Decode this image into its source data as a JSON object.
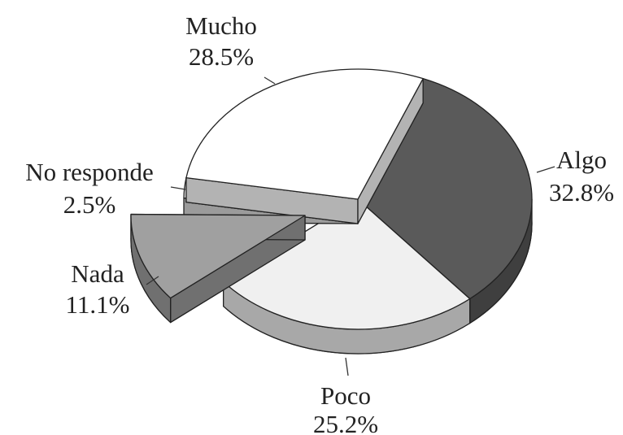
{
  "chart_data": {
    "type": "pie",
    "categories": [
      "Algo",
      "Poco",
      "Nada",
      "No responde",
      "Mucho"
    ],
    "values": [
      32.8,
      25.2,
      11.1,
      2.5,
      28.5
    ],
    "value_labels": [
      "32.8%",
      "25.2%",
      "11.1%",
      "2.5%",
      "28.5%"
    ],
    "colors": [
      "#5a5a5a",
      "#f0f0f0",
      "#a0a0a0",
      "#dedede",
      "#ffffff"
    ],
    "exploded": [
      false,
      false,
      true,
      false,
      false
    ]
  }
}
